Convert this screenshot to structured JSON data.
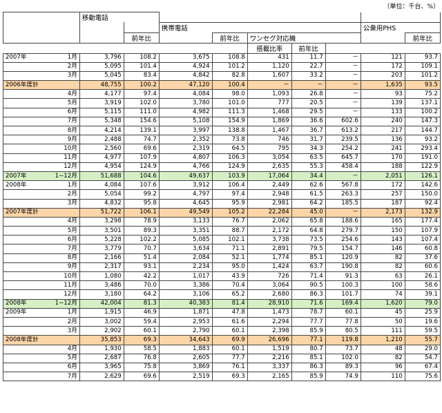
{
  "unit_note": "（単位：千台、%）",
  "headers": {
    "mobile": "移動電話",
    "cellular": "携帯電話",
    "oneseg": "ワンセグ対応機",
    "phs": "公衆用PHS",
    "yoy": "前年比",
    "ratio": "搭載比率"
  },
  "rows": [
    {
      "type": "m",
      "year": "2007年",
      "month": "1月",
      "c": [
        "3,796",
        "108.2",
        "3,675",
        "108.8",
        "431",
        "11.7",
        "－",
        "121",
        "93.7"
      ]
    },
    {
      "type": "m",
      "year": "",
      "month": "2月",
      "c": [
        "5,095",
        "101.4",
        "4,924",
        "101.2",
        "1,120",
        "22.7",
        "－",
        "172",
        "109.1"
      ]
    },
    {
      "type": "m",
      "year": "",
      "month": "3月",
      "c": [
        "5,045",
        "83.4",
        "4,842",
        "82.8",
        "1,607",
        "33.2",
        "－",
        "203",
        "101.2"
      ]
    },
    {
      "type": "fy",
      "label": "2006年度計",
      "c": [
        "48,755",
        "100.2",
        "47,120",
        "100.4",
        "－",
        "－",
        "－",
        "1,635",
        "93.5"
      ]
    },
    {
      "type": "m",
      "year": "",
      "month": "4月",
      "c": [
        "4,177",
        "97.4",
        "4,084",
        "98.0",
        "1,093",
        "26.8",
        "－",
        "93",
        "75.2"
      ]
    },
    {
      "type": "m",
      "year": "",
      "month": "5月",
      "c": [
        "3,919",
        "102.0",
        "3,780",
        "101.0",
        "777",
        "20.5",
        "－",
        "139",
        "137.1"
      ]
    },
    {
      "type": "m",
      "year": "",
      "month": "6月",
      "c": [
        "5,115",
        "111.0",
        "4,982",
        "111.3",
        "1,468",
        "29.5",
        "－",
        "133",
        "100.2"
      ]
    },
    {
      "type": "m",
      "year": "",
      "month": "7月",
      "c": [
        "5,348",
        "154.6",
        "5,108",
        "154.9",
        "1,869",
        "36.6",
        "602.6",
        "240",
        "147.3"
      ]
    },
    {
      "type": "m",
      "year": "",
      "month": "8月",
      "c": [
        "4,214",
        "139.1",
        "3,997",
        "138.8",
        "1,467",
        "36.7",
        "613.2",
        "217",
        "144.7"
      ]
    },
    {
      "type": "m",
      "year": "",
      "month": "9月",
      "c": [
        "2,488",
        "74.7",
        "2,352",
        "73.8",
        "746",
        "31.7",
        "239.5",
        "136",
        "93.2"
      ]
    },
    {
      "type": "m",
      "year": "",
      "month": "10月",
      "c": [
        "2,560",
        "69.6",
        "2,319",
        "64.5",
        "795",
        "34.3",
        "254.2",
        "241",
        "293.4"
      ]
    },
    {
      "type": "m",
      "year": "",
      "month": "11月",
      "c": [
        "4,977",
        "107.9",
        "4,807",
        "106.3",
        "3,054",
        "63.5",
        "645.7",
        "170",
        "191.0"
      ]
    },
    {
      "type": "m",
      "year": "",
      "month": "12月",
      "c": [
        "4,954",
        "124.9",
        "4,766",
        "124.9",
        "2,635",
        "55.3",
        "458.4",
        "188",
        "122.9"
      ]
    },
    {
      "type": "cy",
      "year": "2007年",
      "month": "1−12月",
      "c": [
        "51,688",
        "104.6",
        "49,637",
        "103.9",
        "17,064",
        "34.4",
        "－",
        "2,051",
        "126.1"
      ]
    },
    {
      "type": "m",
      "year": "2008年",
      "month": "1月",
      "c": [
        "4,084",
        "107.6",
        "3,912",
        "106.4",
        "2,449",
        "62.6",
        "567.8",
        "172",
        "142.6"
      ]
    },
    {
      "type": "m",
      "year": "",
      "month": "2月",
      "c": [
        "5,054",
        "99.2",
        "4,797",
        "97.4",
        "2,948",
        "61.5",
        "263.3",
        "257",
        "150.0"
      ]
    },
    {
      "type": "m",
      "year": "",
      "month": "3月",
      "c": [
        "4,832",
        "95.8",
        "4,645",
        "95.9",
        "2,981",
        "64.2",
        "185.5",
        "187",
        "92.4"
      ]
    },
    {
      "type": "fy",
      "label": "2007年度計",
      "c": [
        "51,722",
        "106.1",
        "49,549",
        "105.2",
        "22,284",
        "45.0",
        "－",
        "2,173",
        "132.9"
      ]
    },
    {
      "type": "m",
      "year": "",
      "month": "4月",
      "c": [
        "3,298",
        "78.9",
        "3,133",
        "76.7",
        "2,062",
        "65.8",
        "188.6",
        "165",
        "177.4"
      ]
    },
    {
      "type": "m",
      "year": "",
      "month": "5月",
      "c": [
        "3,501",
        "89.3",
        "3,351",
        "88.7",
        "2,172",
        "64.8",
        "279.7",
        "150",
        "107.9"
      ]
    },
    {
      "type": "m",
      "year": "",
      "month": "6月",
      "c": [
        "5,228",
        "102.2",
        "5,085",
        "102.1",
        "3,738",
        "73.5",
        "254.6",
        "143",
        "107.4"
      ]
    },
    {
      "type": "m",
      "year": "",
      "month": "7月",
      "c": [
        "3,779",
        "70.7",
        "3,634",
        "71.1",
        "2,891",
        "79.5",
        "154.7",
        "146",
        "60.8"
      ]
    },
    {
      "type": "m",
      "year": "",
      "month": "8月",
      "c": [
        "2,166",
        "51.4",
        "2,084",
        "52.1",
        "1,774",
        "85.1",
        "120.9",
        "82",
        "37.6"
      ]
    },
    {
      "type": "m",
      "year": "",
      "month": "9月",
      "c": [
        "2,317",
        "93.1",
        "2,234",
        "95.0",
        "1,424",
        "63.7",
        "190.8",
        "82",
        "60.6"
      ]
    },
    {
      "type": "m",
      "year": "",
      "month": "10月",
      "c": [
        "1,080",
        "42.2",
        "1,017",
        "43.9",
        "726",
        "71.4",
        "91.3",
        "63",
        "26.1"
      ]
    },
    {
      "type": "m",
      "year": "",
      "month": "11月",
      "c": [
        "3,486",
        "70.0",
        "3,386",
        "70.4",
        "3,064",
        "90.5",
        "100.3",
        "100",
        "58.6"
      ]
    },
    {
      "type": "m",
      "year": "",
      "month": "12月",
      "c": [
        "3,180",
        "64.2",
        "3,106",
        "65.2",
        "2,680",
        "86.3",
        "101.7",
        "74",
        "39.1"
      ]
    },
    {
      "type": "cy",
      "year": "2008年",
      "month": "1−12月",
      "c": [
        "42,004",
        "81.3",
        "40,383",
        "81.4",
        "28,910",
        "71.6",
        "169.4",
        "1,620",
        "79.0"
      ]
    },
    {
      "type": "m",
      "year": "2009年",
      "month": "1月",
      "c": [
        "1,915",
        "46.9",
        "1,871",
        "47.8",
        "1,473",
        "78.7",
        "60.1",
        "45",
        "25.9"
      ]
    },
    {
      "type": "m",
      "year": "",
      "month": "2月",
      "c": [
        "3,002",
        "59.4",
        "2,953",
        "61.6",
        "2,294",
        "77.7",
        "77.8",
        "50",
        "19.6"
      ]
    },
    {
      "type": "m",
      "year": "",
      "month": "3月",
      "c": [
        "2,902",
        "60.1",
        "2,790",
        "60.1",
        "2,398",
        "85.9",
        "80.5",
        "111",
        "59.5"
      ]
    },
    {
      "type": "fy",
      "label": "2008年度計",
      "c": [
        "35,853",
        "69.3",
        "34,643",
        "69.9",
        "26,696",
        "77.1",
        "119.8",
        "1,210",
        "55.7"
      ]
    },
    {
      "type": "m",
      "year": "",
      "month": "4月",
      "c": [
        "1,930",
        "58.5",
        "1,883",
        "60.1",
        "1,519",
        "80.7",
        "73.7",
        "48",
        "29.0"
      ]
    },
    {
      "type": "m",
      "year": "",
      "month": "5月",
      "c": [
        "2,687",
        "76.8",
        "2,605",
        "77.7",
        "2,216",
        "85.1",
        "102.0",
        "82",
        "54.7"
      ]
    },
    {
      "type": "m",
      "year": "",
      "month": "6月",
      "c": [
        "3,965",
        "75.8",
        "3,869",
        "76.1",
        "3,337",
        "86.3",
        "89.3",
        "96",
        "67.4"
      ]
    },
    {
      "type": "m",
      "year": "",
      "month": "7月",
      "c": [
        "2,629",
        "69.6",
        "2,519",
        "69.3",
        "2,165",
        "85.9",
        "74.9",
        "110",
        "75.6"
      ]
    }
  ]
}
